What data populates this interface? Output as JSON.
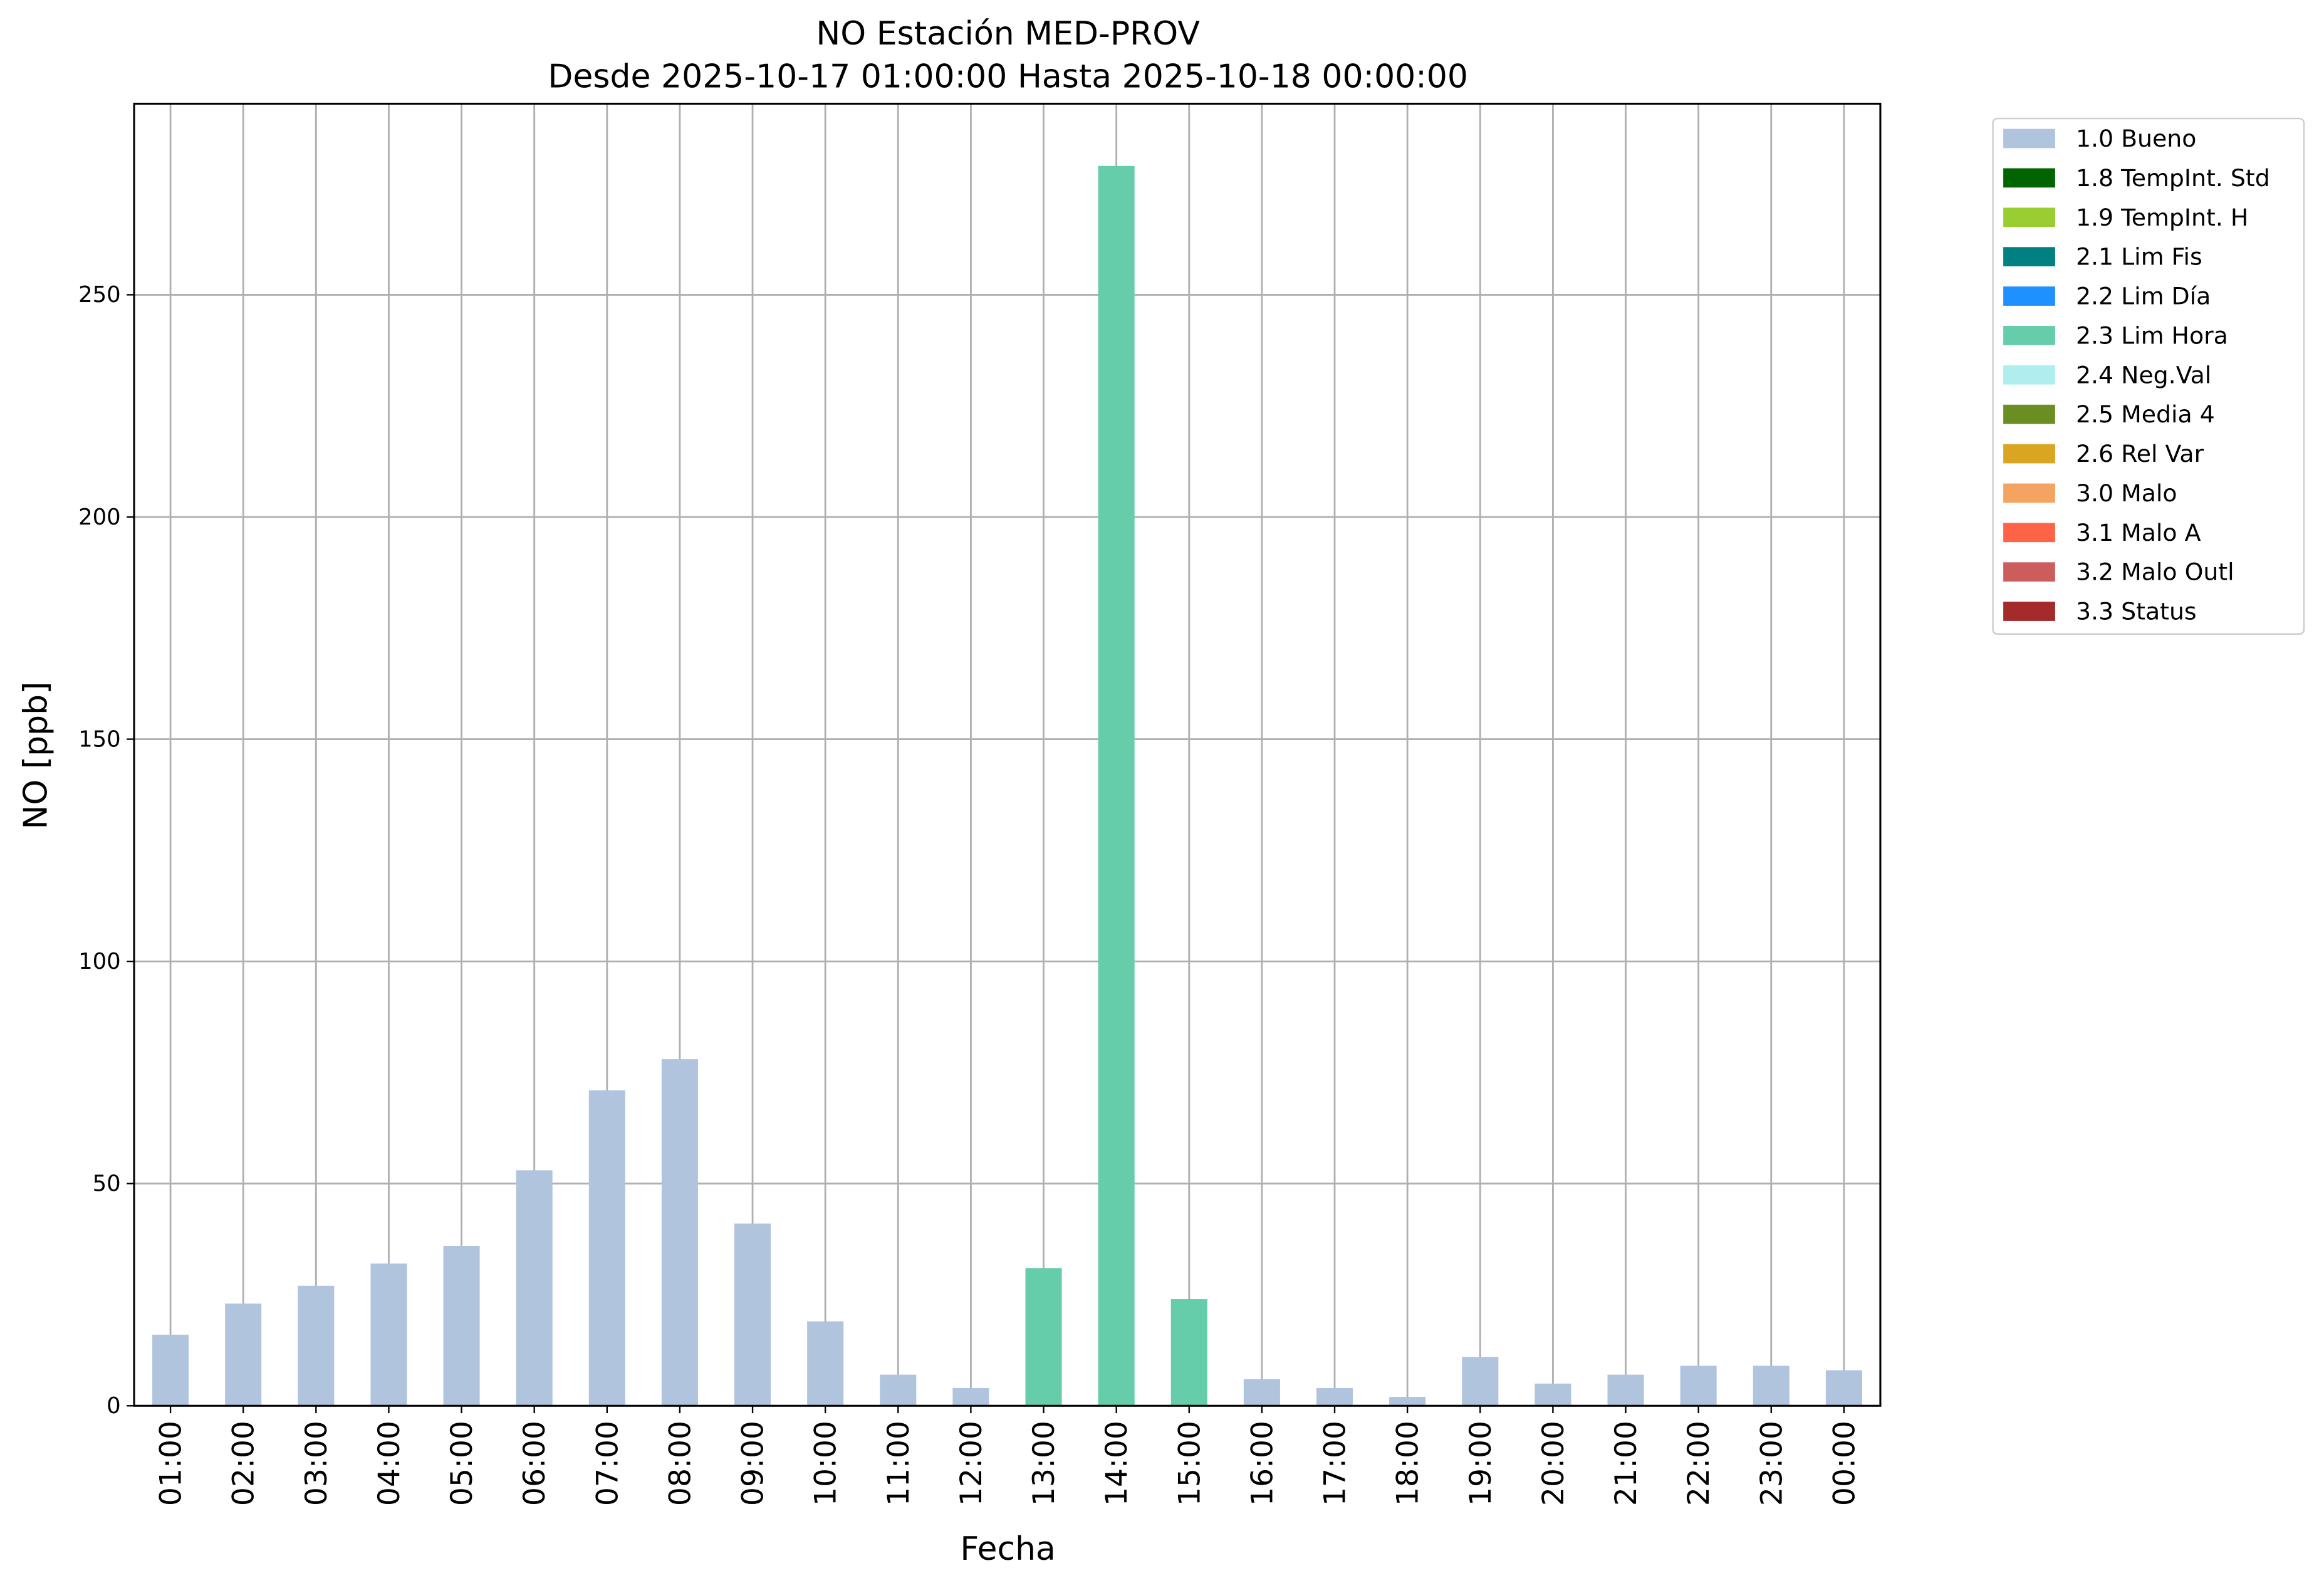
{
  "chart_data": {
    "type": "stacked_bar",
    "title": "NO Estación MED-PROV",
    "subtitle": "Desde 2025-10-17 01:00:00 Hasta 2025-10-18 00:00:00",
    "x_label": "Fecha",
    "y_label": "NO [ppb]",
    "categories": [
      "01:00",
      "02:00",
      "03:00",
      "04:00",
      "05:00",
      "06:00",
      "07:00",
      "08:00",
      "09:00",
      "10:00",
      "11:00",
      "12:00",
      "13:00",
      "14:00",
      "15:00",
      "16:00",
      "17:00",
      "18:00",
      "19:00",
      "20:00",
      "21:00",
      "22:00",
      "23:00",
      "00:00"
    ],
    "series": [
      {
        "name": "1.0 Bueno",
        "color": "#b0c4de",
        "values": [
          16,
          23,
          27,
          32,
          36,
          53,
          71,
          78,
          41,
          19,
          7,
          4,
          null,
          null,
          null,
          6,
          4,
          2,
          11,
          5,
          7,
          9,
          9,
          8
        ]
      },
      {
        "name": "1.8 TempInt. Std",
        "color": "#006400",
        "values": [
          null,
          null,
          null,
          null,
          null,
          null,
          null,
          null,
          null,
          null,
          null,
          null,
          null,
          null,
          null,
          null,
          null,
          null,
          null,
          null,
          null,
          null,
          null,
          null
        ]
      },
      {
        "name": "1.9 TempInt. H",
        "color": "#9acd32",
        "values": [
          null,
          null,
          null,
          null,
          null,
          null,
          null,
          null,
          null,
          null,
          null,
          null,
          null,
          null,
          null,
          null,
          null,
          null,
          null,
          null,
          null,
          null,
          null,
          null
        ]
      },
      {
        "name": "2.1 Lim Fis",
        "color": "#008080",
        "values": [
          null,
          null,
          null,
          null,
          null,
          null,
          null,
          null,
          null,
          null,
          null,
          null,
          null,
          null,
          null,
          null,
          null,
          null,
          null,
          null,
          null,
          null,
          null,
          null
        ]
      },
      {
        "name": "2.2 Lim Día",
        "color": "#1e90ff",
        "values": [
          null,
          null,
          null,
          null,
          null,
          null,
          null,
          null,
          null,
          null,
          null,
          null,
          null,
          null,
          null,
          null,
          null,
          null,
          null,
          null,
          null,
          null,
          null,
          null
        ]
      },
      {
        "name": "2.3 Lim Hora",
        "color": "#66cdaa",
        "values": [
          null,
          null,
          null,
          null,
          null,
          null,
          null,
          null,
          null,
          null,
          null,
          null,
          31,
          279,
          24,
          null,
          null,
          null,
          null,
          null,
          null,
          null,
          null,
          null
        ]
      },
      {
        "name": "2.4 Neg.Val",
        "color": "#afeeee",
        "values": [
          null,
          null,
          null,
          null,
          null,
          null,
          null,
          null,
          null,
          null,
          null,
          null,
          null,
          null,
          null,
          null,
          null,
          null,
          null,
          null,
          null,
          null,
          null,
          null
        ]
      },
      {
        "name": "2.5 Media 4",
        "color": "#6b8e23",
        "values": [
          null,
          null,
          null,
          null,
          null,
          null,
          null,
          null,
          null,
          null,
          null,
          null,
          null,
          null,
          null,
          null,
          null,
          null,
          null,
          null,
          null,
          null,
          null,
          null
        ]
      },
      {
        "name": "2.6 Rel Var",
        "color": "#daa520",
        "values": [
          null,
          null,
          null,
          null,
          null,
          null,
          null,
          null,
          null,
          null,
          null,
          null,
          null,
          null,
          null,
          null,
          null,
          null,
          null,
          null,
          null,
          null,
          null,
          null
        ]
      },
      {
        "name": "3.0 Malo",
        "color": "#f4a460",
        "values": [
          null,
          null,
          null,
          null,
          null,
          null,
          null,
          null,
          null,
          null,
          null,
          null,
          null,
          null,
          null,
          null,
          null,
          null,
          null,
          null,
          null,
          null,
          null,
          null
        ]
      },
      {
        "name": "3.1 Malo A",
        "color": "#ff6347",
        "values": [
          null,
          null,
          null,
          null,
          null,
          null,
          null,
          null,
          null,
          null,
          null,
          null,
          null,
          null,
          null,
          null,
          null,
          null,
          null,
          null,
          null,
          null,
          null,
          null
        ]
      },
      {
        "name": "3.2 Malo Outl",
        "color": "#cd5c5c",
        "values": [
          null,
          null,
          null,
          null,
          null,
          null,
          null,
          null,
          null,
          null,
          null,
          null,
          null,
          null,
          null,
          null,
          null,
          null,
          null,
          null,
          null,
          null,
          null,
          null
        ]
      },
      {
        "name": "3.3 Status",
        "color": "#a52a2a",
        "values": [
          null,
          null,
          null,
          null,
          null,
          null,
          null,
          null,
          null,
          null,
          null,
          null,
          null,
          null,
          null,
          null,
          null,
          null,
          null,
          null,
          null,
          null,
          null,
          null
        ]
      }
    ],
    "ylim": [
      0,
      293
    ],
    "yticks": [
      0,
      50,
      100,
      150,
      200,
      250
    ],
    "grid": true,
    "legend": "outside right"
  }
}
